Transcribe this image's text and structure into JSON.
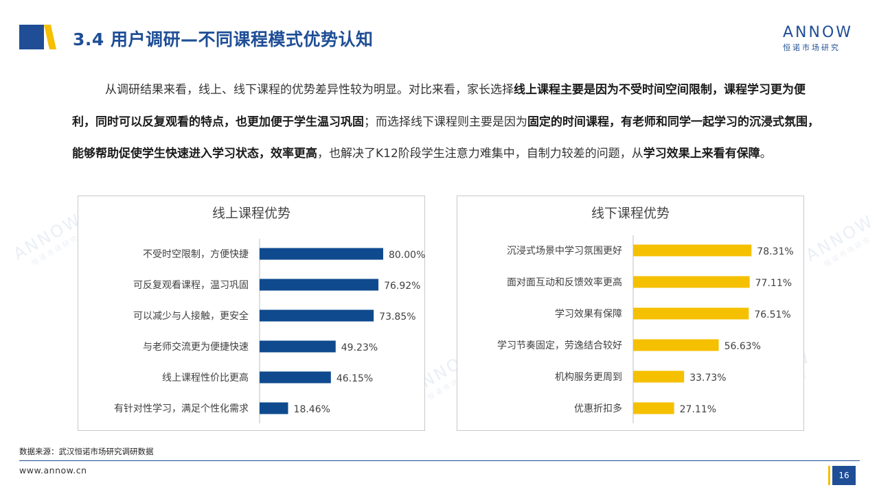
{
  "header": {
    "title": "3.4 用户调研—不同课程模式优势认知",
    "logo_text": "ANNOW",
    "logo_subtext": "恒诺市场研究"
  },
  "summary": {
    "s1": "从调研结果来看，线上、线下课程的优势差异性较为明显。对比来看，家长选择",
    "b1": "线上课程主要是因为不受时间空间限制，课程学习更为便利，同时可以反复观看的特点，也更加便于学生温习巩固",
    "s2": "；而选择线下课程则主要是因为",
    "b2": "固定的时间课程，有老师和同学一起学习的沉浸式氛围，能够帮助促使学生快速进入学习状态，效率更高",
    "s3": "，也解决了K12阶段学生注意力难集中，自制力较差的问题，从",
    "b3": "学习效果上来看有保障",
    "s4": "。"
  },
  "chart_data": [
    {
      "type": "bar",
      "orientation": "horizontal",
      "title": "线上课程优势",
      "categories": [
        "不受时空限制，方便快捷",
        "可反复观看课程，温习巩固",
        "可以减少与人接触，更安全",
        "与老师交流更为便捷快速",
        "线上课程性价比更高",
        "有针对性学习，满足个性化需求"
      ],
      "values": [
        80.0,
        76.92,
        73.85,
        49.23,
        46.15,
        18.46
      ],
      "value_labels": [
        "80.00%",
        "76.92%",
        "73.85%",
        "49.23%",
        "46.15%",
        "18.46%"
      ],
      "color": "#0f4a8e",
      "xlim": [
        0,
        100
      ],
      "grid": false,
      "legend": "none"
    },
    {
      "type": "bar",
      "orientation": "horizontal",
      "title": "线下课程优势",
      "categories": [
        "沉浸式场景中学习氛围更好",
        "面对面互动和反馈效率更高",
        "学习效果有保障",
        "学习节奏固定，劳逸结合较好",
        "机构服务更周到",
        "优惠折扣多"
      ],
      "values": [
        78.31,
        77.11,
        76.51,
        56.63,
        33.73,
        27.11
      ],
      "value_labels": [
        "78.31%",
        "77.11%",
        "76.51%",
        "56.63%",
        "33.73%",
        "27.11%"
      ],
      "color": "#f5c000",
      "xlim": [
        0,
        100
      ],
      "grid": false,
      "legend": "none"
    }
  ],
  "footer": {
    "source": "数据来源：武汉恒诺市场研究调研数据",
    "site": "www.annow.cn",
    "page": "16"
  },
  "colors": {
    "brand_blue": "#1f4e96",
    "accent_yellow": "#f5c000"
  }
}
